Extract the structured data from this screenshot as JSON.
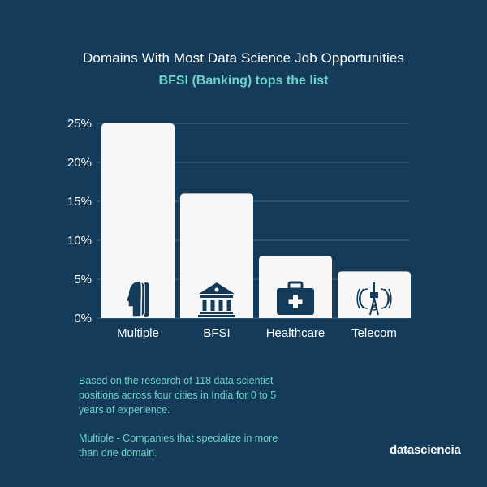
{
  "chart_data": {
    "type": "bar",
    "title": "Domains With Most Data Science Job Opportunities",
    "subtitle": "BFSI (Banking) tops the list",
    "categories": [
      "Multiple",
      "BFSI",
      "Healthcare",
      "Telecom"
    ],
    "values": [
      25,
      16,
      8,
      6
    ],
    "value_unit": "%",
    "yticks": [
      "0%",
      "5%",
      "10%",
      "15%",
      "20%",
      "25%"
    ],
    "ylim": [
      0,
      25
    ],
    "grid": true,
    "bar_color": "#f7f7f7",
    "icons": [
      "people-icon",
      "bank-icon",
      "medical-kit-icon",
      "antenna-icon"
    ]
  },
  "notes": {
    "research": "Based on the research of 118 data scientist positions across four cities in India for 0 to 5 years of experience.",
    "multiple_definition": "Multiple - Companies that specialize in more than one domain."
  },
  "brand": "datasciencia",
  "colors": {
    "background": "#143c5a",
    "accent": "#6fd1c8",
    "gridline": "#3f6682",
    "icon": "#143c5a"
  }
}
